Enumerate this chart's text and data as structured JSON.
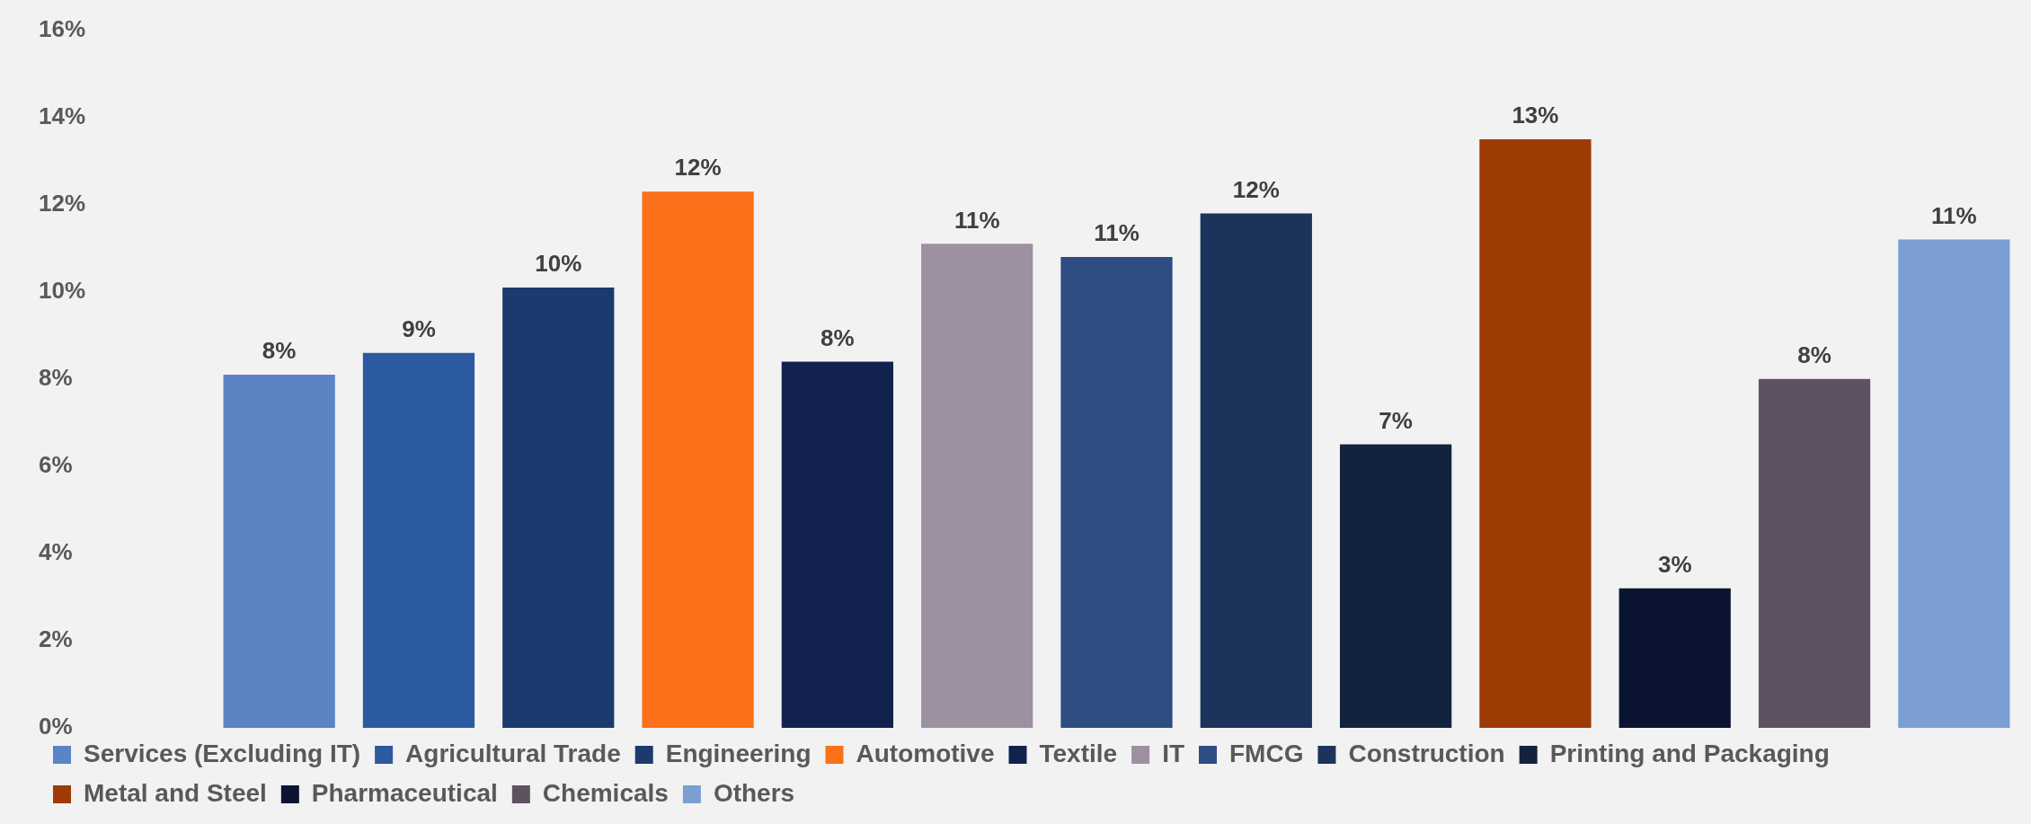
{
  "chart_data": {
    "type": "bar",
    "categories": [
      null,
      null,
      null,
      null,
      null,
      null,
      null,
      null,
      null,
      null,
      null,
      null,
      null
    ],
    "series": [
      {
        "name": "Services (Excluding IT)",
        "color": "#5b84c4",
        "values": [
          8.1,
          null,
          null,
          null,
          null,
          null,
          null,
          null,
          null,
          null,
          null,
          null,
          null
        ],
        "value_labels": [
          "8%",
          null,
          null,
          null,
          null,
          null,
          null,
          null,
          null,
          null,
          null,
          null,
          null
        ]
      },
      {
        "name": "Agricultural Trade",
        "color": "#2c5aa0",
        "values": [
          null,
          8.6,
          null,
          null,
          null,
          null,
          null,
          null,
          null,
          null,
          null,
          null,
          null
        ],
        "value_labels": [
          null,
          "9%",
          null,
          null,
          null,
          null,
          null,
          null,
          null,
          null,
          null,
          null,
          null
        ]
      },
      {
        "name": "Engineering",
        "color": "#1b3a6e",
        "values": [
          null,
          null,
          10.1,
          null,
          null,
          null,
          null,
          null,
          null,
          null,
          null,
          null,
          null
        ],
        "value_labels": [
          null,
          null,
          "10%",
          null,
          null,
          null,
          null,
          null,
          null,
          null,
          null,
          null,
          null
        ]
      },
      {
        "name": "Automotive",
        "color": "#fb7019",
        "values": [
          null,
          null,
          null,
          12.3,
          null,
          null,
          null,
          null,
          null,
          null,
          null,
          null,
          null
        ],
        "value_labels": [
          null,
          null,
          null,
          "12%",
          null,
          null,
          null,
          null,
          null,
          null,
          null,
          null,
          null
        ]
      },
      {
        "name": "Textile",
        "color": "#13214e",
        "values": [
          null,
          null,
          null,
          null,
          8.4,
          null,
          null,
          null,
          null,
          null,
          null,
          null,
          null
        ],
        "value_labels": [
          null,
          null,
          null,
          null,
          "8%",
          null,
          null,
          null,
          null,
          null,
          null,
          null,
          null
        ]
      },
      {
        "name": "IT",
        "color": "#9d90a0",
        "values": [
          null,
          null,
          null,
          null,
          null,
          11.1,
          null,
          null,
          null,
          null,
          null,
          null,
          null
        ],
        "value_labels": [
          null,
          null,
          null,
          null,
          null,
          "11%",
          null,
          null,
          null,
          null,
          null,
          null,
          null
        ]
      },
      {
        "name": "FMCG",
        "color": "#2e4d82",
        "values": [
          null,
          null,
          null,
          null,
          null,
          null,
          10.8,
          null,
          null,
          null,
          null,
          null,
          null
        ],
        "value_labels": [
          null,
          null,
          null,
          null,
          null,
          null,
          "11%",
          null,
          null,
          null,
          null,
          null,
          null
        ]
      },
      {
        "name": "Construction",
        "color": "#1c345c",
        "values": [
          null,
          null,
          null,
          null,
          null,
          null,
          null,
          11.8,
          null,
          null,
          null,
          null,
          null
        ],
        "value_labels": [
          null,
          null,
          null,
          null,
          null,
          null,
          null,
          "12%",
          null,
          null,
          null,
          null,
          null
        ]
      },
      {
        "name": "Printing and Packaging",
        "color": "#12223f",
        "values": [
          null,
          null,
          null,
          null,
          null,
          null,
          null,
          null,
          6.5,
          null,
          null,
          null,
          null
        ],
        "value_labels": [
          null,
          null,
          null,
          null,
          null,
          null,
          null,
          null,
          "7%",
          null,
          null,
          null,
          null
        ]
      },
      {
        "name": "Metal and Steel",
        "color": "#9e3b04",
        "values": [
          null,
          null,
          null,
          null,
          null,
          null,
          null,
          null,
          null,
          13.5,
          null,
          null,
          null
        ],
        "value_labels": [
          null,
          null,
          null,
          null,
          null,
          null,
          null,
          null,
          null,
          "13%",
          null,
          null,
          null
        ]
      },
      {
        "name": "Pharmaceutical",
        "color": "#0b1430",
        "values": [
          null,
          null,
          null,
          null,
          null,
          null,
          null,
          null,
          null,
          null,
          3.2,
          null,
          null
        ],
        "value_labels": [
          null,
          null,
          null,
          null,
          null,
          null,
          null,
          null,
          null,
          null,
          "3%",
          null,
          null
        ]
      },
      {
        "name": "Chemicals",
        "color": "#5e5262",
        "values": [
          null,
          null,
          null,
          null,
          null,
          null,
          null,
          null,
          null,
          null,
          null,
          8.0,
          null
        ],
        "value_labels": [
          null,
          null,
          null,
          null,
          null,
          null,
          null,
          null,
          null,
          null,
          null,
          "8%",
          null
        ]
      },
      {
        "name": "Others",
        "color": "#7b9ed3",
        "values": [
          null,
          null,
          null,
          null,
          null,
          null,
          null,
          null,
          null,
          null,
          null,
          null,
          11.2
        ],
        "value_labels": [
          null,
          null,
          null,
          null,
          null,
          null,
          null,
          null,
          null,
          null,
          null,
          null,
          "11%"
        ]
      }
    ],
    "ylim": [
      0,
      16
    ],
    "yticks": [
      {
        "value": 0,
        "label": "0%"
      },
      {
        "value": 2,
        "label": "2%"
      },
      {
        "value": 4,
        "label": "4%"
      },
      {
        "value": 6,
        "label": "6%"
      },
      {
        "value": 8,
        "label": "8%"
      },
      {
        "value": 10,
        "label": "10%"
      },
      {
        "value": 12,
        "label": "12%"
      },
      {
        "value": 14,
        "label": "14%"
      },
      {
        "value": 16,
        "label": "16%"
      }
    ],
    "tick_labels": "y",
    "grid": false,
    "legend": "bottom",
    "stacked": true
  }
}
